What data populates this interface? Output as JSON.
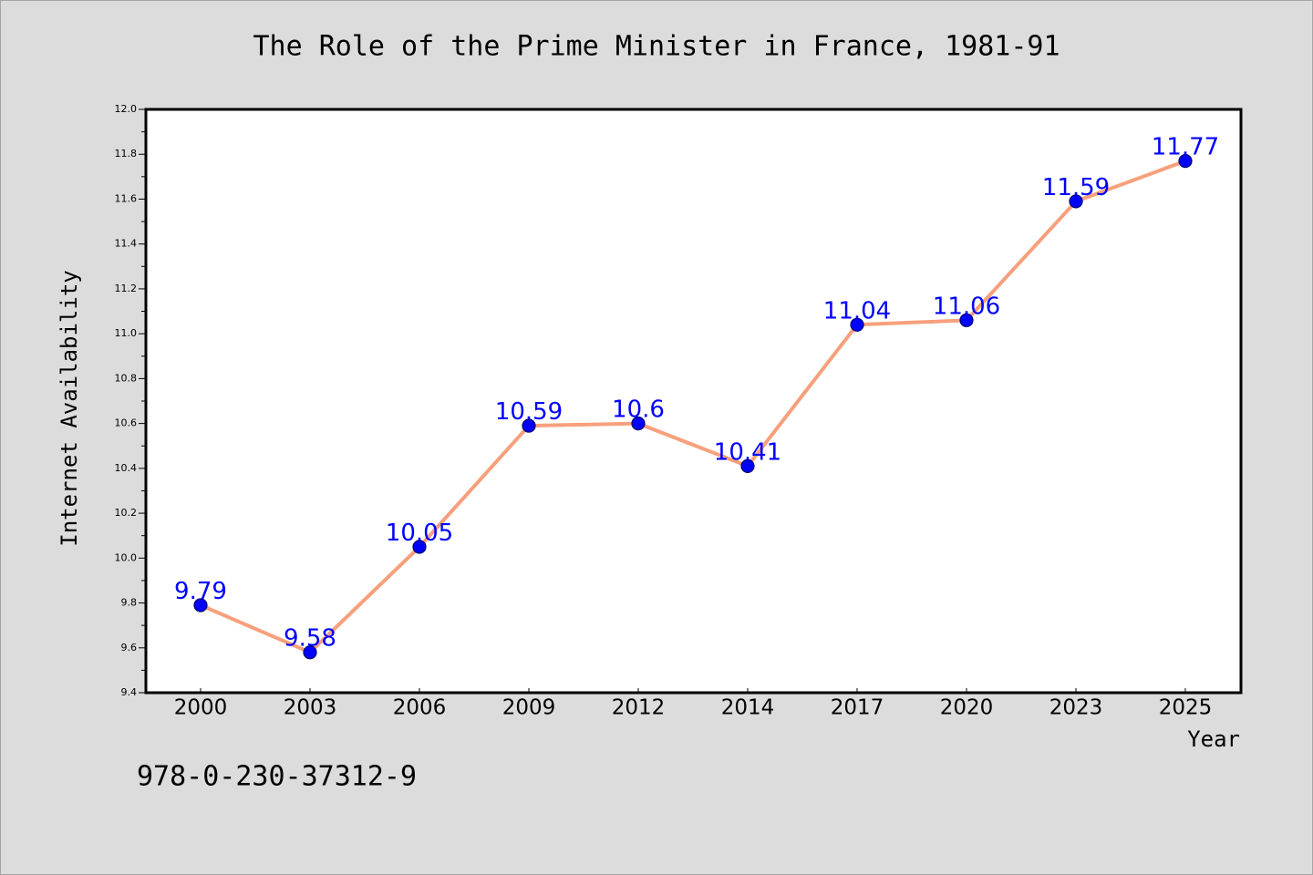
{
  "chart_data": {
    "type": "line",
    "title": "The Role of the Prime Minister in France, 1981-91",
    "xlabel": "Year",
    "ylabel": "Internet Availability",
    "categories": [
      "2000",
      "2003",
      "2006",
      "2009",
      "2012",
      "2014",
      "2017",
      "2020",
      "2023",
      "2025"
    ],
    "series": [
      {
        "values": [
          9.79,
          9.58,
          10.05,
          10.59,
          10.6,
          10.41,
          11.04,
          11.06,
          11.59,
          11.77
        ]
      }
    ],
    "data_labels": [
      "9.79",
      "9.58",
      "10.05",
      "10.59",
      "10.6",
      "10.41",
      "11.04",
      "11.06",
      "11.59",
      "11.77"
    ],
    "ylim": [
      9.4,
      12.0
    ],
    "yticks": [
      9.4,
      9.6,
      9.8,
      10.0,
      10.2,
      10.4,
      10.6,
      10.8,
      11.0,
      11.2,
      11.4,
      11.6,
      11.8,
      12.0
    ],
    "grid": false,
    "legend": "none",
    "colors": {
      "background": "#dcdcdc",
      "plot_background": "#ffffff",
      "line": "#f7a07c",
      "marker_fill": "#0000ff",
      "marker_edge": "#00006e",
      "data_label": "#0000ff"
    }
  },
  "footer": {
    "isbn": "978-0-230-37312-9"
  }
}
